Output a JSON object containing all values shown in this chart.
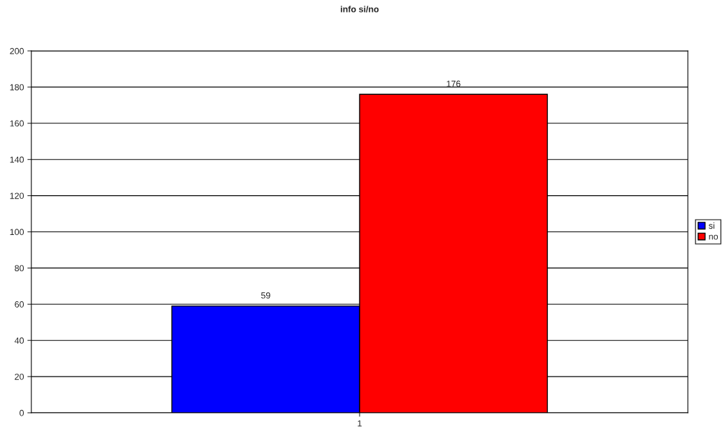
{
  "chart_data": {
    "type": "bar",
    "title": "info si/no",
    "categories": [
      "1"
    ],
    "series": [
      {
        "name": "si",
        "color": "#0000ff",
        "values": [
          59
        ]
      },
      {
        "name": "no",
        "color": "#ff0000",
        "values": [
          176
        ]
      }
    ],
    "ylim": [
      0,
      200
    ],
    "yticks": [
      0,
      20,
      40,
      60,
      80,
      100,
      120,
      140,
      160,
      180,
      200
    ],
    "grid": "y",
    "legend": "right",
    "data_labels": true
  }
}
